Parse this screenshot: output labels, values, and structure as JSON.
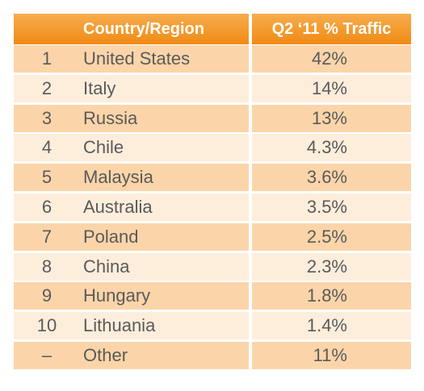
{
  "chart_data": {
    "type": "table",
    "columns": [
      "",
      "Country/Region",
      "Q2 ‘11 % Traffic"
    ],
    "rows": [
      {
        "rank": "1",
        "country": "United States",
        "traffic": "42%"
      },
      {
        "rank": "2",
        "country": "Italy",
        "traffic": "14%"
      },
      {
        "rank": "3",
        "country": "Russia",
        "traffic": "13%"
      },
      {
        "rank": "4",
        "country": "Chile",
        "traffic": "4.3%"
      },
      {
        "rank": "5",
        "country": "Malaysia",
        "traffic": "3.6%"
      },
      {
        "rank": "6",
        "country": "Australia",
        "traffic": "3.5%"
      },
      {
        "rank": "7",
        "country": "Poland",
        "traffic": "2.5%"
      },
      {
        "rank": "8",
        "country": "China",
        "traffic": "2.3%"
      },
      {
        "rank": "9",
        "country": "Hungary",
        "traffic": "1.8%"
      },
      {
        "rank": "10",
        "country": "Lithuania",
        "traffic": "1.4%"
      },
      {
        "rank": "–",
        "country": "Other",
        "traffic": "11%"
      }
    ]
  },
  "colors": {
    "header": "#f39a2d",
    "row_dark": "#fbd5a9",
    "row_light": "#fdeedc",
    "text": "#5a5a5a",
    "header_text": "#ffffff"
  }
}
